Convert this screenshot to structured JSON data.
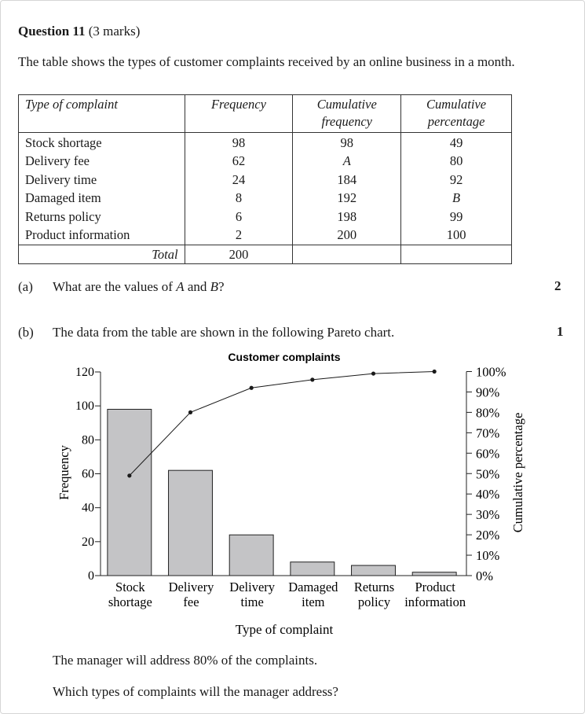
{
  "question": {
    "number": "Question 11",
    "marks": "(3 marks)",
    "intro": "The table shows the types of customer complaints received by an online business in a month."
  },
  "table": {
    "headers": {
      "type": "Type of complaint",
      "frequency": "Frequency",
      "cumulative_frequency_line1": "Cumulative",
      "cumulative_frequency_line2": "frequency",
      "cumulative_percentage_line1": "Cumulative",
      "cumulative_percentage_line2": "percentage"
    },
    "rows": [
      {
        "type": "Stock shortage",
        "frequency": "98",
        "cumulative_frequency": "98",
        "cumulative_percentage": "49"
      },
      {
        "type": "Delivery fee",
        "frequency": "62",
        "cumulative_frequency": "A",
        "cumulative_percentage": "80"
      },
      {
        "type": "Delivery time",
        "frequency": "24",
        "cumulative_frequency": "184",
        "cumulative_percentage": "92"
      },
      {
        "type": "Damaged item",
        "frequency": "8",
        "cumulative_frequency": "192",
        "cumulative_percentage": "B"
      },
      {
        "type": "Returns policy",
        "frequency": "6",
        "cumulative_frequency": "198",
        "cumulative_percentage": "99"
      },
      {
        "type": "Product information",
        "frequency": "2",
        "cumulative_frequency": "200",
        "cumulative_percentage": "100"
      }
    ],
    "total_label": "Total",
    "total_value": "200"
  },
  "part_a": {
    "label": "(a)",
    "text_before": "What are the values of ",
    "var_a": "A",
    "text_mid": " and ",
    "var_b": "B",
    "text_after": "?",
    "marks": "2"
  },
  "part_b": {
    "label": "(b)",
    "text": "The data from the table are shown in the following Pareto chart.",
    "marks": "1",
    "statement": "The manager will address 80% of the complaints.",
    "question": "Which types of complaints will the manager address?"
  },
  "chart_data": {
    "type": "bar",
    "title": "Customer complaints",
    "xlabel": "Type of complaint",
    "ylabel": "Frequency",
    "y2label": "Cumulative percentage",
    "categories": [
      [
        "Stock",
        "shortage"
      ],
      [
        "Delivery",
        "fee"
      ],
      [
        "Delivery",
        "time"
      ],
      [
        "Damaged",
        "item"
      ],
      [
        "Returns",
        "policy"
      ],
      [
        "Product",
        "information"
      ]
    ],
    "values": [
      98,
      62,
      24,
      8,
      6,
      2
    ],
    "cumulative_percentage": [
      49,
      80,
      92,
      96,
      99,
      100
    ],
    "ylim": [
      0,
      120
    ],
    "y2lim": [
      0,
      100
    ],
    "yticks": [
      "0",
      "20",
      "40",
      "60",
      "80",
      "100",
      "120"
    ],
    "y2ticks": [
      "0%",
      "10%",
      "20%",
      "30%",
      "40%",
      "50%",
      "60%",
      "70%",
      "80%",
      "90%",
      "100%"
    ],
    "bar_color": "#c4c4c6",
    "line_color": "#1a1a1a",
    "grid": false
  }
}
